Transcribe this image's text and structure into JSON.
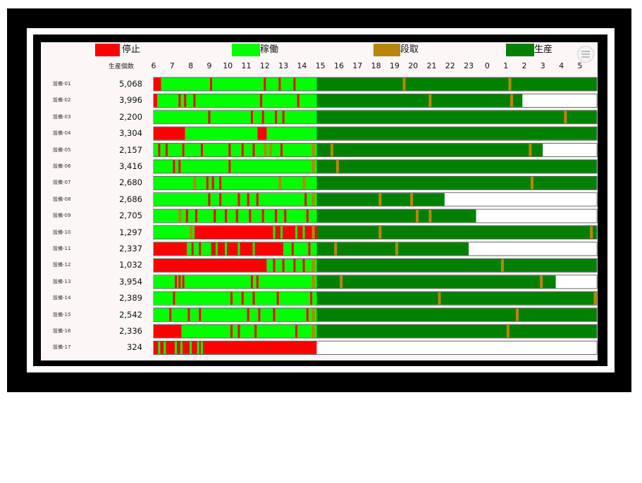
{
  "legend": [
    {
      "label": "停止",
      "color": "#ff0000"
    },
    {
      "label": "稼働",
      "color": "#00ff00"
    },
    {
      "label": "段取",
      "color": "#b8860b"
    },
    {
      "label": "生産",
      "color": "#008000"
    }
  ],
  "count_header": "生産個数",
  "chart_data": {
    "type": "timeline",
    "x_unit": "hour of day",
    "x_ticks": [
      "6",
      "7",
      "8",
      "9",
      "10",
      "11",
      "12",
      "13",
      "14",
      "15",
      "16",
      "17",
      "18",
      "19",
      "20",
      "21",
      "22",
      "23",
      "0",
      "1",
      "2",
      "3",
      "4",
      "5"
    ],
    "x_range": [
      6,
      29.9
    ],
    "state_colors": {
      "stop": "#ff0000",
      "run": "#00ff00",
      "setup": "#b8860b",
      "production": "#008000"
    },
    "rows": [
      {
        "label": "設備-01",
        "count": "5,068",
        "segments": [
          [
            "stop",
            6,
            6.4
          ],
          [
            "run",
            6.4,
            14.8
          ],
          [
            "prod",
            14.8,
            29.9
          ]
        ],
        "marks": [
          [
            6.8,
            "g"
          ],
          [
            9.1,
            "r"
          ],
          [
            10.3,
            "g"
          ],
          [
            11.2,
            "g"
          ],
          [
            11.8,
            "g"
          ],
          [
            12.0,
            "r"
          ],
          [
            12.8,
            "r"
          ],
          [
            13.6,
            "r"
          ],
          [
            14.2,
            "g"
          ],
          [
            19.5,
            "s"
          ],
          [
            25.2,
            "s"
          ]
        ]
      },
      {
        "label": "設備-02",
        "count": "3,996",
        "segments": [
          [
            "stop",
            6,
            6.2
          ],
          [
            "run",
            6.2,
            14.8
          ],
          [
            "prod",
            14.8,
            25.9
          ],
          [
            "empty",
            25.9,
            29.9
          ]
        ],
        "marks": [
          [
            6.6,
            "g"
          ],
          [
            7.4,
            "r"
          ],
          [
            7.7,
            "r"
          ],
          [
            8.2,
            "r"
          ],
          [
            9.4,
            "g"
          ],
          [
            10.2,
            "g"
          ],
          [
            11.0,
            "g"
          ],
          [
            11.8,
            "r"
          ],
          [
            13.8,
            "r"
          ],
          [
            14.3,
            "g"
          ],
          [
            20.9,
            "s"
          ],
          [
            25.3,
            "s"
          ]
        ]
      },
      {
        "label": "設備-03",
        "count": "2,200",
        "segments": [
          [
            "run",
            6,
            14.8
          ],
          [
            "prod",
            14.8,
            29.9
          ]
        ],
        "marks": [
          [
            6.2,
            "g"
          ],
          [
            6.6,
            "g"
          ],
          [
            9.0,
            "r"
          ],
          [
            9.9,
            "g"
          ],
          [
            10.7,
            "g"
          ],
          [
            11.3,
            "r"
          ],
          [
            11.9,
            "r"
          ],
          [
            12.6,
            "r"
          ],
          [
            13.0,
            "r"
          ],
          [
            14.2,
            "g"
          ],
          [
            28.2,
            "s"
          ]
        ]
      },
      {
        "label": "設備-04",
        "count": "3,304",
        "segments": [
          [
            "stop",
            6,
            7.7
          ],
          [
            "run",
            7.7,
            11.6
          ],
          [
            "stop",
            11.6,
            12.1
          ],
          [
            "run",
            12.1,
            14.8
          ],
          [
            "prod",
            14.8,
            29.9
          ]
        ],
        "marks": [
          [
            13.0,
            "g"
          ]
        ]
      },
      {
        "label": "設備-05",
        "count": "2,157",
        "segments": [
          [
            "run",
            6,
            14.8
          ],
          [
            "prod",
            14.8,
            27.0
          ],
          [
            "empty",
            27.0,
            29.9
          ]
        ],
        "marks": [
          [
            6.3,
            "r"
          ],
          [
            6.7,
            "r"
          ],
          [
            7.6,
            "r"
          ],
          [
            8.0,
            "g"
          ],
          [
            8.6,
            "r"
          ],
          [
            9.4,
            "g"
          ],
          [
            10.1,
            "r"
          ],
          [
            10.8,
            "r"
          ],
          [
            11.4,
            "r"
          ],
          [
            12.0,
            "s"
          ],
          [
            12.3,
            "s"
          ],
          [
            12.9,
            "r"
          ],
          [
            14.6,
            "s"
          ],
          [
            15.6,
            "s"
          ],
          [
            26.3,
            "s"
          ]
        ]
      },
      {
        "label": "設備-06",
        "count": "3,416",
        "segments": [
          [
            "run",
            6,
            14.8
          ],
          [
            "prod",
            14.8,
            29.9
          ]
        ],
        "marks": [
          [
            7.1,
            "r"
          ],
          [
            7.4,
            "r"
          ],
          [
            8.6,
            "g"
          ],
          [
            9.4,
            "g"
          ],
          [
            10.1,
            "r"
          ],
          [
            10.8,
            "g"
          ],
          [
            11.6,
            "g"
          ],
          [
            12.2,
            "g"
          ],
          [
            13.3,
            "g"
          ],
          [
            14.6,
            "s"
          ],
          [
            15.9,
            "s"
          ]
        ]
      },
      {
        "label": "設備-07",
        "count": "2,680",
        "segments": [
          [
            "run",
            6,
            14.8
          ],
          [
            "prod",
            14.8,
            29.9
          ]
        ],
        "marks": [
          [
            8.2,
            "s"
          ],
          [
            8.9,
            "r"
          ],
          [
            9.2,
            "r"
          ],
          [
            9.6,
            "r"
          ],
          [
            10.3,
            "g"
          ],
          [
            11.0,
            "g"
          ],
          [
            11.6,
            "g"
          ],
          [
            12.4,
            "g"
          ],
          [
            12.8,
            "s"
          ],
          [
            13.4,
            "g"
          ],
          [
            14.1,
            "s"
          ],
          [
            26.4,
            "s"
          ]
        ]
      },
      {
        "label": "設備-08",
        "count": "2,686",
        "segments": [
          [
            "run",
            6,
            14.8
          ],
          [
            "prod",
            14.8,
            21.7
          ],
          [
            "empty",
            21.7,
            29.9
          ]
        ],
        "marks": [
          [
            8.3,
            "g"
          ],
          [
            9.0,
            "r"
          ],
          [
            9.6,
            "r"
          ],
          [
            10.1,
            "g"
          ],
          [
            10.6,
            "r"
          ],
          [
            11.1,
            "r"
          ],
          [
            11.6,
            "r"
          ],
          [
            12.5,
            "g"
          ],
          [
            13.6,
            "g"
          ],
          [
            14.2,
            "r"
          ],
          [
            14.6,
            "s"
          ],
          [
            18.2,
            "s"
          ],
          [
            19.9,
            "s"
          ]
        ]
      },
      {
        "label": "設備-09",
        "count": "2,705",
        "segments": [
          [
            "run",
            6,
            14.8
          ],
          [
            "prod",
            14.8,
            23.4
          ],
          [
            "empty",
            23.4,
            29.9
          ]
        ],
        "marks": [
          [
            7.4,
            "s"
          ],
          [
            7.8,
            "r"
          ],
          [
            8.3,
            "r"
          ],
          [
            8.9,
            "g"
          ],
          [
            9.3,
            "r"
          ],
          [
            9.9,
            "r"
          ],
          [
            10.5,
            "r"
          ],
          [
            11.2,
            "r"
          ],
          [
            11.9,
            "r"
          ],
          [
            12.6,
            "r"
          ],
          [
            13.1,
            "r"
          ],
          [
            13.9,
            "g"
          ],
          [
            14.3,
            "r"
          ],
          [
            20.2,
            "s"
          ],
          [
            20.9,
            "s"
          ]
        ]
      },
      {
        "label": "設備-10",
        "count": "1,297",
        "segments": [
          [
            "run",
            6,
            8.2
          ],
          [
            "stop",
            8.2,
            14.8
          ],
          [
            "prod",
            14.8,
            29.9
          ]
        ],
        "marks": [
          [
            8.0,
            "s"
          ],
          [
            12.5,
            "g"
          ],
          [
            12.9,
            "g"
          ],
          [
            13.7,
            "g"
          ],
          [
            14.1,
            "g"
          ],
          [
            14.6,
            "s"
          ],
          [
            18.2,
            "s"
          ],
          [
            29.6,
            "s"
          ]
        ]
      },
      {
        "label": "設備-11",
        "count": "2,337",
        "segments": [
          [
            "stop",
            6,
            7.8
          ],
          [
            "run",
            7.8,
            9.1
          ],
          [
            "stop",
            9.1,
            13.0
          ],
          [
            "run",
            13.0,
            14.8
          ],
          [
            "prod",
            14.8,
            23.0
          ],
          [
            "empty",
            23.0,
            29.9
          ]
        ],
        "marks": [
          [
            8.1,
            "r"
          ],
          [
            8.5,
            "r"
          ],
          [
            9.4,
            "g"
          ],
          [
            9.9,
            "g"
          ],
          [
            10.6,
            "g"
          ],
          [
            11.4,
            "g"
          ],
          [
            13.5,
            "r"
          ],
          [
            14.4,
            "r"
          ],
          [
            15.8,
            "s"
          ],
          [
            19.1,
            "s"
          ]
        ]
      },
      {
        "label": "設備-12",
        "count": "1,032",
        "segments": [
          [
            "stop",
            6,
            12.1
          ],
          [
            "run",
            12.1,
            14.8
          ],
          [
            "prod",
            14.8,
            29.9
          ]
        ],
        "marks": [
          [
            12.5,
            "r"
          ],
          [
            13.0,
            "r"
          ],
          [
            13.6,
            "r"
          ],
          [
            14.1,
            "r"
          ],
          [
            14.6,
            "s"
          ],
          [
            24.8,
            "s"
          ]
        ]
      },
      {
        "label": "設備-13",
        "count": "3,954",
        "segments": [
          [
            "run",
            6,
            14.8
          ],
          [
            "prod",
            14.8,
            27.7
          ],
          [
            "empty",
            27.7,
            29.9
          ]
        ],
        "marks": [
          [
            7.2,
            "r"
          ],
          [
            7.4,
            "r"
          ],
          [
            7.6,
            "r"
          ],
          [
            11.3,
            "r"
          ],
          [
            11.6,
            "r"
          ],
          [
            14.6,
            "s"
          ],
          [
            16.1,
            "s"
          ],
          [
            26.9,
            "s"
          ]
        ]
      },
      {
        "label": "設備-14",
        "count": "2,389",
        "segments": [
          [
            "run",
            6,
            14.8
          ],
          [
            "prod",
            14.8,
            29.9
          ]
        ],
        "marks": [
          [
            7.1,
            "r"
          ],
          [
            8.6,
            "g"
          ],
          [
            10.2,
            "r"
          ],
          [
            10.8,
            "r"
          ],
          [
            11.4,
            "r"
          ],
          [
            12.3,
            "g"
          ],
          [
            12.7,
            "r"
          ],
          [
            13.4,
            "g"
          ],
          [
            14.5,
            "r"
          ],
          [
            21.4,
            "s"
          ],
          [
            29.8,
            "s"
          ]
        ]
      },
      {
        "label": "設備-15",
        "count": "2,542",
        "segments": [
          [
            "run",
            6,
            14.8
          ],
          [
            "prod",
            14.8,
            29.9
          ]
        ],
        "marks": [
          [
            6.9,
            "r"
          ],
          [
            7.9,
            "r"
          ],
          [
            8.5,
            "r"
          ],
          [
            9.9,
            "g"
          ],
          [
            11.1,
            "r"
          ],
          [
            11.7,
            "r"
          ],
          [
            12.5,
            "r"
          ],
          [
            13.5,
            "g"
          ],
          [
            14.3,
            "r"
          ],
          [
            14.6,
            "s"
          ],
          [
            25.6,
            "s"
          ]
        ]
      },
      {
        "label": "設備-16",
        "count": "2,336",
        "segments": [
          [
            "stop",
            6,
            7.5
          ],
          [
            "run",
            7.5,
            14.8
          ],
          [
            "prod",
            14.8,
            29.9
          ]
        ],
        "marks": [
          [
            10.2,
            "r"
          ],
          [
            10.6,
            "r"
          ],
          [
            11.5,
            "r"
          ],
          [
            13.7,
            "r"
          ],
          [
            14.6,
            "s"
          ],
          [
            25.1,
            "s"
          ]
        ]
      },
      {
        "label": "設備-17",
        "count": "324",
        "segments": [
          [
            "stop",
            6,
            14.8
          ],
          [
            "empty",
            14.8,
            29.9
          ]
        ],
        "marks": [
          [
            6.3,
            "g"
          ],
          [
            6.6,
            "g"
          ],
          [
            7.2,
            "g"
          ],
          [
            7.5,
            "g"
          ],
          [
            8.0,
            "g"
          ],
          [
            8.4,
            "g"
          ],
          [
            8.6,
            "g"
          ]
        ]
      }
    ]
  }
}
